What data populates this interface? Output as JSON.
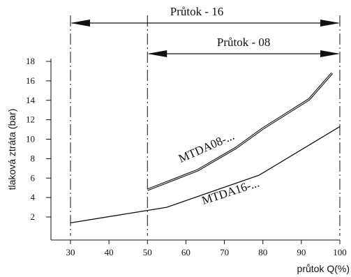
{
  "chart_data": {
    "type": "line",
    "xlabel": "průtok Q(%)",
    "ylabel": "tlaková ztráta (bar)",
    "xlim": [
      30,
      100
    ],
    "ylim": [
      0,
      18
    ],
    "x_ticks": [
      30,
      40,
      50,
      60,
      70,
      80,
      90,
      100
    ],
    "y_ticks": [
      2,
      4,
      6,
      8,
      10,
      12,
      14,
      16,
      18
    ],
    "grid": false,
    "series": [
      {
        "name": "MTDA08-...",
        "x": [
          50,
          63,
          73,
          80,
          92,
          98
        ],
        "y": [
          4.8,
          6.8,
          9.1,
          11.1,
          14.1,
          16.8
        ]
      },
      {
        "name": "MTDA16-...",
        "x": [
          30,
          55,
          79,
          100
        ],
        "y": [
          1.4,
          3.0,
          6.3,
          11.3
        ]
      }
    ],
    "annotations": [
      {
        "text": "Průtok - 16",
        "from": 30,
        "to": 100
      },
      {
        "text": "Průtok - 08",
        "from": 50,
        "to": 100
      }
    ]
  }
}
